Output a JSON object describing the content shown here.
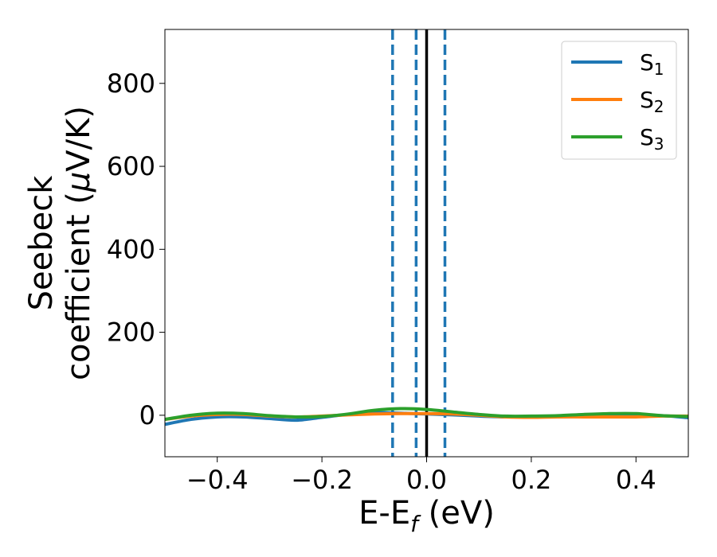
{
  "chart_data": {
    "type": "line",
    "xlabel_main": "E-E",
    "xlabel_sub": "f",
    "xlabel_unit": " (eV)",
    "ylabel_line1": "Seebeck",
    "ylabel_line2_prefix": "coefficient  (",
    "ylabel_mu": "μ",
    "ylabel_line2_suffix": "V/K)",
    "xlim": [
      -0.5,
      0.5
    ],
    "ylim": [
      -100,
      930
    ],
    "x_ticks": [
      -0.4,
      -0.2,
      0.0,
      0.2,
      0.4
    ],
    "x_tick_labels": [
      "−0.4",
      "−0.2",
      "0.0",
      "0.2",
      "0.4"
    ],
    "y_ticks": [
      0,
      200,
      400,
      600,
      800
    ],
    "y_tick_labels": [
      "0",
      "200",
      "400",
      "600",
      "800"
    ],
    "legend_position": "top-right",
    "vlines": [
      {
        "x": -0.065,
        "style": "dashed",
        "color": "#1f77b4"
      },
      {
        "x": -0.02,
        "style": "dashed",
        "color": "#1f77b4"
      },
      {
        "x": 0.035,
        "style": "dashed",
        "color": "#1f77b4"
      },
      {
        "x": 0.0,
        "style": "solid",
        "color": "#000000"
      }
    ],
    "series": [
      {
        "name_main": "S",
        "name_sub": "1",
        "color": "#1f77b4",
        "x": [
          -0.5,
          -0.45,
          -0.4,
          -0.35,
          -0.3,
          -0.25,
          -0.2,
          -0.15,
          -0.1,
          -0.05,
          0.0,
          0.05,
          0.1,
          0.15,
          0.2,
          0.25,
          0.3,
          0.35,
          0.4,
          0.45,
          0.5
        ],
        "y": [
          -22,
          -10,
          -4,
          -4,
          -8,
          -12,
          -5,
          2,
          6,
          5,
          3,
          1,
          -2,
          -4,
          -4,
          -4,
          -3,
          -2,
          -3,
          -1,
          -6
        ]
      },
      {
        "name_main": "S",
        "name_sub": "2",
        "color": "#ff7f0e",
        "x": [
          -0.5,
          -0.45,
          -0.4,
          -0.35,
          -0.3,
          -0.25,
          -0.2,
          -0.15,
          -0.1,
          -0.05,
          0.0,
          0.05,
          0.1,
          0.15,
          0.2,
          0.25,
          0.3,
          0.35,
          0.4,
          0.45,
          0.5
        ],
        "y": [
          -10,
          -2,
          2,
          2,
          -2,
          -4,
          -2,
          1,
          3,
          4,
          4,
          3,
          0,
          -4,
          -5,
          -4,
          -4,
          -4,
          -4,
          -2,
          -2
        ]
      },
      {
        "name_main": "S",
        "name_sub": "3",
        "color": "#2ca02c",
        "x": [
          -0.5,
          -0.45,
          -0.4,
          -0.35,
          -0.3,
          -0.25,
          -0.2,
          -0.15,
          -0.1,
          -0.05,
          0.0,
          0.05,
          0.1,
          0.15,
          0.2,
          0.25,
          0.3,
          0.35,
          0.4,
          0.45,
          0.5
        ],
        "y": [
          -10,
          0,
          5,
          4,
          -1,
          -4,
          -3,
          3,
          12,
          16,
          14,
          8,
          2,
          -2,
          -2,
          -1,
          2,
          4,
          4,
          -1,
          -3
        ]
      }
    ]
  }
}
